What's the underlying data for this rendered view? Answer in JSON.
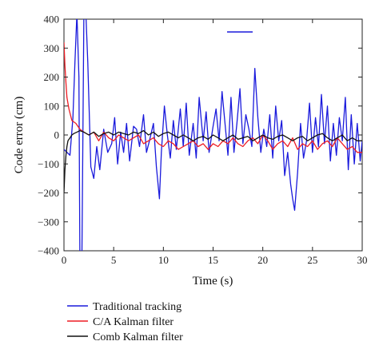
{
  "chart_data": {
    "type": "line",
    "title": "",
    "xlabel": "Time (s)",
    "ylabel": "Code error (cm)",
    "xlim": [
      0,
      30
    ],
    "ylim": [
      -400,
      400
    ],
    "xticks": [
      0,
      5,
      10,
      15,
      20,
      25,
      30
    ],
    "xtick_labels": [
      "0",
      "5",
      "10",
      "15",
      "20",
      "25",
      "30"
    ],
    "yticks": [
      -400,
      -300,
      -200,
      -100,
      0,
      100,
      200,
      300,
      400
    ],
    "ytick_labels": [
      "−400",
      "−300",
      "−200",
      "−100",
      "0",
      "100",
      "200",
      "300",
      "400"
    ],
    "grid": false,
    "legend_position": "below",
    "series": [
      {
        "name": "Traditional tracking",
        "color": "#1a1adc",
        "x": [
          0,
          0.6,
          0.9,
          1.1,
          1.3,
          1.5,
          1.6,
          1.8,
          2.0,
          2.2,
          2.4,
          2.7,
          3.0,
          3.3,
          3.6,
          4.0,
          4.4,
          4.8,
          5.1,
          5.4,
          5.7,
          6.0,
          6.3,
          6.6,
          7.0,
          7.3,
          7.6,
          8.0,
          8.3,
          8.6,
          9.0,
          9.3,
          9.6,
          9.8,
          10.1,
          10.4,
          10.7,
          11.0,
          11.3,
          11.7,
          12.0,
          12.3,
          12.6,
          13.0,
          13.3,
          13.6,
          14.0,
          14.3,
          14.6,
          15.0,
          15.3,
          15.6,
          15.9,
          16.2,
          16.5,
          16.8,
          17.1,
          17.4,
          17.7,
          18.0,
          18.3,
          18.6,
          18.9,
          19.2,
          19.5,
          19.8,
          20.1,
          20.4,
          20.7,
          21.0,
          21.3,
          21.6,
          21.9,
          22.2,
          22.5,
          22.8,
          23.0,
          23.2,
          23.5,
          23.8,
          24.1,
          24.4,
          24.7,
          25.0,
          25.3,
          25.6,
          25.9,
          26.2,
          26.5,
          26.8,
          27.1,
          27.4,
          27.7,
          28.0,
          28.3,
          28.6,
          28.9,
          29.2,
          29.5,
          29.8,
          30.0
        ],
        "values": [
          -50,
          -70,
          60,
          250,
          420,
          200,
          -420,
          -440,
          420,
          420,
          250,
          -110,
          -150,
          -40,
          -120,
          20,
          -60,
          -30,
          60,
          -100,
          10,
          -60,
          40,
          -90,
          30,
          20,
          -40,
          70,
          -60,
          -20,
          40,
          -110,
          -220,
          -60,
          100,
          0,
          -80,
          50,
          -50,
          90,
          -40,
          110,
          -70,
          40,
          -80,
          130,
          -20,
          80,
          -60,
          30,
          90,
          -20,
          150,
          40,
          -70,
          130,
          -60,
          40,
          160,
          -30,
          70,
          20,
          -40,
          230,
          60,
          -60,
          20,
          -40,
          70,
          -80,
          100,
          -20,
          50,
          -140,
          -60,
          -170,
          -220,
          -260,
          -130,
          40,
          -80,
          -20,
          110,
          -60,
          60,
          -40,
          140,
          -30,
          100,
          -90,
          40,
          -70,
          60,
          -20,
          130,
          -120,
          70,
          -100,
          40,
          -90,
          -20
        ]
      },
      {
        "name": "C/A Kalman filter",
        "color": "#ee1c24",
        "x": [
          0,
          0.1,
          0.2,
          0.3,
          0.5,
          0.8,
          1.2,
          1.6,
          2.0,
          2.5,
          3.0,
          3.5,
          4.0,
          4.5,
          5.0,
          5.5,
          6.0,
          6.5,
          7.0,
          7.5,
          8.0,
          8.5,
          9.0,
          9.5,
          10.0,
          10.5,
          11.0,
          11.5,
          12.0,
          12.5,
          13.0,
          13.5,
          14.0,
          14.5,
          15.0,
          15.5,
          16.0,
          16.5,
          17.0,
          17.5,
          18.0,
          18.5,
          19.0,
          19.5,
          20.0,
          20.5,
          21.0,
          21.5,
          22.0,
          22.5,
          23.0,
          23.5,
          24.0,
          24.5,
          25.0,
          25.5,
          26.0,
          26.5,
          27.0,
          27.5,
          28.0,
          28.5,
          29.0,
          29.5,
          30.0
        ],
        "values": [
          320,
          240,
          180,
          130,
          90,
          50,
          40,
          20,
          10,
          0,
          10,
          -20,
          10,
          -10,
          -20,
          0,
          -10,
          -20,
          -10,
          0,
          -30,
          -20,
          -10,
          -30,
          -40,
          -20,
          -30,
          -50,
          -40,
          -30,
          -20,
          -40,
          -30,
          -50,
          -30,
          -40,
          -20,
          -30,
          -10,
          -30,
          -40,
          -20,
          -10,
          -30,
          0,
          -20,
          -50,
          -30,
          -20,
          -40,
          -10,
          -50,
          -30,
          -40,
          -20,
          -50,
          -30,
          -20,
          -40,
          -10,
          -30,
          -50,
          -40,
          -60,
          -60
        ]
      },
      {
        "name": "Comb Kalman filter",
        "color": "#111111",
        "x": [
          0,
          0.1,
          0.2,
          0.3,
          0.4,
          0.6,
          0.8,
          1.0,
          1.3,
          1.6,
          2.0,
          2.5,
          3.0,
          3.5,
          4.0,
          4.5,
          5.0,
          5.5,
          6.0,
          6.5,
          7.0,
          7.5,
          8.0,
          8.5,
          9.0,
          9.5,
          10.0,
          10.5,
          11.0,
          11.5,
          12.0,
          12.5,
          13.0,
          13.5,
          14.0,
          14.5,
          15.0,
          15.5,
          16.0,
          16.5,
          17.0,
          17.5,
          18.0,
          18.5,
          19.0,
          19.5,
          20.0,
          20.5,
          21.0,
          21.5,
          22.0,
          22.5,
          23.0,
          23.5,
          24.0,
          24.5,
          25.0,
          25.5,
          26.0,
          26.5,
          27.0,
          27.5,
          28.0,
          28.5,
          29.0,
          29.5,
          30.0
        ],
        "values": [
          -200,
          -120,
          -70,
          -40,
          -20,
          -10,
          0,
          5,
          10,
          15,
          10,
          0,
          10,
          -5,
          5,
          10,
          0,
          10,
          5,
          0,
          10,
          5,
          15,
          0,
          10,
          -5,
          5,
          10,
          0,
          -10,
          0,
          -10,
          -20,
          -10,
          -5,
          -15,
          0,
          -10,
          -20,
          -10,
          0,
          -15,
          -10,
          -5,
          -20,
          -10,
          0,
          -10,
          -15,
          -5,
          0,
          -10,
          -20,
          -10,
          -5,
          -20,
          -10,
          0,
          5,
          -10,
          -20,
          -10,
          0,
          -20,
          -10,
          -20,
          -20
        ]
      }
    ]
  }
}
